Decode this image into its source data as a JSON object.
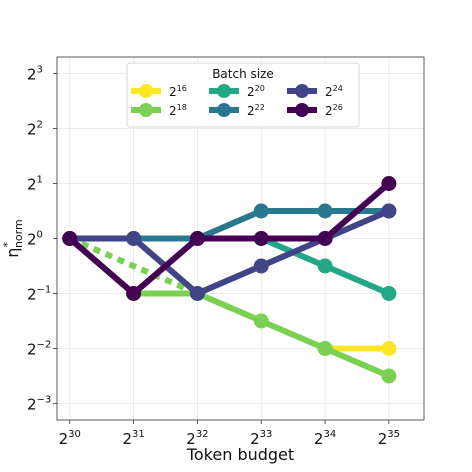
{
  "chart_data": {
    "type": "line",
    "xlabel": "Token budget",
    "ylabel": "η*norm",
    "ylabel_main": "η",
    "ylabel_sup": "*",
    "ylabel_sub": "norm",
    "x_scale": "log2",
    "y_scale": "log2",
    "x_ticks": [
      {
        "base": "2",
        "exp": "30",
        "value": 30
      },
      {
        "base": "2",
        "exp": "31",
        "value": 31
      },
      {
        "base": "2",
        "exp": "32",
        "value": 32
      },
      {
        "base": "2",
        "exp": "33",
        "value": 33
      },
      {
        "base": "2",
        "exp": "34",
        "value": 34
      },
      {
        "base": "2",
        "exp": "35",
        "value": 35
      }
    ],
    "y_ticks": [
      {
        "base": "2",
        "exp": "3",
        "value": 3
      },
      {
        "base": "2",
        "exp": "2",
        "value": 2
      },
      {
        "base": "2",
        "exp": "1",
        "value": 1
      },
      {
        "base": "2",
        "exp": "0",
        "value": 0
      },
      {
        "base": "2",
        "exp": "−1",
        "value": -1
      },
      {
        "base": "2",
        "exp": "−2",
        "value": -2
      },
      {
        "base": "2",
        "exp": "−3",
        "value": -3
      }
    ],
    "xlim_log2": [
      29.8,
      35.55
    ],
    "ylim_log2": [
      -3.3,
      3.3
    ],
    "grid": true,
    "legend": {
      "title": "Batch size",
      "placement": "top-center",
      "columns": 3
    },
    "series": [
      {
        "name": "16",
        "label_base": "2",
        "label_exp": "16",
        "color": "#fde725",
        "points": [
          [
            34,
            -2
          ],
          [
            35,
            -2
          ]
        ],
        "dashed_segments": []
      },
      {
        "name": "18",
        "label_base": "2",
        "label_exp": "18",
        "color": "#7ad151",
        "points": [
          [
            30,
            0
          ],
          [
            31,
            -1
          ],
          [
            32,
            -1
          ],
          [
            33,
            -1.5
          ],
          [
            34,
            -2
          ],
          [
            35,
            -2.5
          ]
        ],
        "dashed_segments": [
          [
            30,
            0,
            32,
            -1
          ]
        ]
      },
      {
        "name": "20",
        "label_base": "2",
        "label_exp": "20",
        "color": "#22a884",
        "points": [
          [
            32,
            0
          ],
          [
            33,
            0
          ],
          [
            34,
            -0.5
          ],
          [
            35,
            -1
          ]
        ],
        "dashed_segments": []
      },
      {
        "name": "22",
        "label_base": "2",
        "label_exp": "22",
        "color": "#2a788e",
        "points": [
          [
            30,
            0
          ],
          [
            31,
            0
          ],
          [
            32,
            0
          ],
          [
            33,
            0.5
          ],
          [
            34,
            0.5
          ],
          [
            35,
            0.5
          ]
        ],
        "dashed_segments": []
      },
      {
        "name": "24",
        "label_base": "2",
        "label_exp": "24",
        "color": "#414487",
        "points": [
          [
            30,
            0
          ],
          [
            31,
            0
          ],
          [
            32,
            -1
          ],
          [
            33,
            -0.5
          ],
          [
            34,
            0
          ],
          [
            35,
            0.5
          ]
        ],
        "dashed_segments": []
      },
      {
        "name": "26",
        "label_base": "2",
        "label_exp": "26",
        "color": "#440154",
        "points": [
          [
            30,
            0
          ],
          [
            31,
            -1
          ],
          [
            32,
            0
          ],
          [
            33,
            0
          ],
          [
            34,
            0
          ],
          [
            35,
            1
          ]
        ],
        "dashed_segments": []
      }
    ]
  }
}
